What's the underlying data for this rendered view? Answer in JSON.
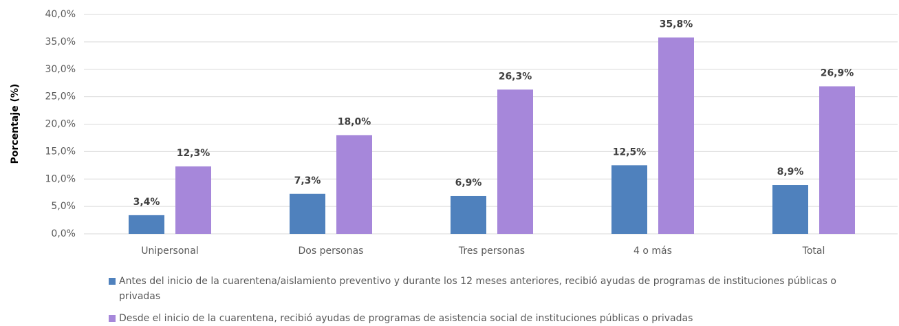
{
  "chart_data": {
    "type": "bar",
    "y_label": "Porcentaje (%)",
    "categories": [
      "Unipersonal",
      "Dos personas",
      "Tres personas",
      "4 o más",
      "Total"
    ],
    "series": [
      {
        "name": "Antes del inicio de la cuarentena/aislamiento preventivo y durante los 12 meses anteriores, recibió ayudas de programas de instituciones públicas o privadas",
        "color": "#4f81bd",
        "values": [
          3.4,
          7.3,
          6.9,
          12.5,
          8.9
        ],
        "value_labels": [
          "3,4%",
          "7,3%",
          "6,9%",
          "12,5%",
          "8,9%"
        ]
      },
      {
        "name": "Desde el inicio de la cuarentena, recibió ayudas de programas de asistencia social de instituciones públicas o privadas",
        "color": "#a687da",
        "values": [
          12.3,
          18.0,
          26.3,
          35.8,
          26.9
        ],
        "value_labels": [
          "12,3%",
          "18,0%",
          "26,3%",
          "35,8%",
          "26,9%"
        ]
      }
    ],
    "ylim": [
      0,
      40
    ],
    "yticks": [
      {
        "value": 0,
        "label": "0,0%"
      },
      {
        "value": 5,
        "label": "5,0%"
      },
      {
        "value": 10,
        "label": "10,0%"
      },
      {
        "value": 15,
        "label": "15,0%"
      },
      {
        "value": 20,
        "label": "20,0%"
      },
      {
        "value": 25,
        "label": "25,0%"
      },
      {
        "value": 30,
        "label": "30,0%"
      },
      {
        "value": 35,
        "label": "35,0%"
      },
      {
        "value": 40,
        "label": "40,0%"
      }
    ],
    "grid": true
  }
}
